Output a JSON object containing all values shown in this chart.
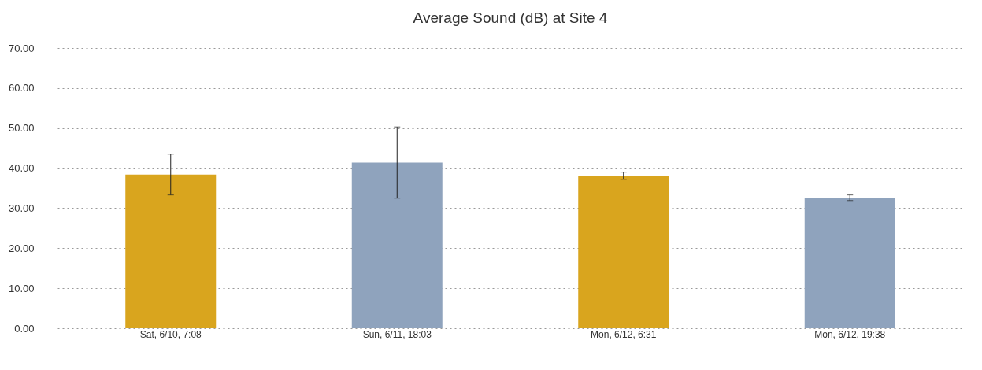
{
  "chart_data": {
    "type": "bar",
    "title": "Average Sound (dB) at Site 4",
    "categories": [
      "Sat, 6/10, 7:08",
      "Sun, 6/11, 18:03",
      "Mon, 6/12, 6:31",
      "Mon, 6/12, 19:38"
    ],
    "values": [
      38.4,
      41.4,
      38.1,
      32.6
    ],
    "colors": [
      "#d9a51e",
      "#8fa3bd",
      "#d9a51e",
      "#8fa3bd"
    ],
    "errors": [
      5.1,
      8.9,
      0.9,
      0.7
    ],
    "ylim": [
      0,
      70
    ],
    "yticks": [
      {
        "value": 0,
        "label": "0.00"
      },
      {
        "value": 10,
        "label": "10.00"
      },
      {
        "value": 20,
        "label": "20.00"
      },
      {
        "value": 30,
        "label": "30.00"
      },
      {
        "value": 40,
        "label": "40.00"
      },
      {
        "value": 50,
        "label": "50.00"
      },
      {
        "value": 60,
        "label": "60.00"
      },
      {
        "value": 70,
        "label": "70.00"
      }
    ],
    "grid": "y"
  }
}
